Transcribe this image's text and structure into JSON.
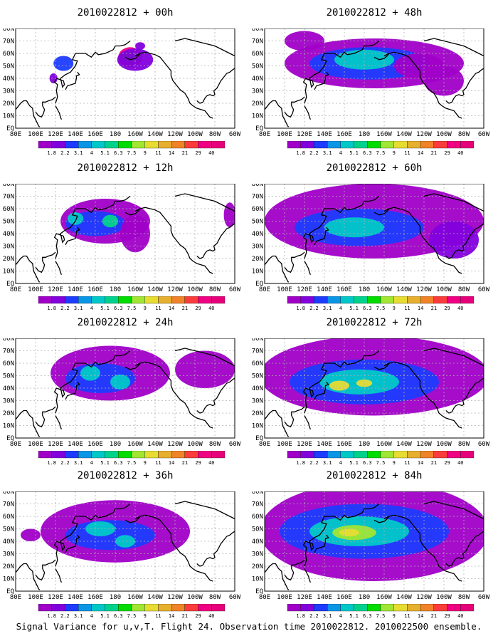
{
  "caption": "Signal Variance for u,v,T. Flight 24. Observation time 2010022812. 2010022500 ensemble.",
  "colors": {
    "ocean": "#ffffff",
    "coast": "#000000",
    "grid": "#b0b0b0",
    "frame": "#000000"
  },
  "chart_data": [
    {
      "type": "heatmap",
      "title": "2010022812 + 00h",
      "xlabel": "",
      "ylabel": "",
      "x_ticks": [
        "80E",
        "100E",
        "120E",
        "140E",
        "160E",
        "180",
        "160W",
        "140W",
        "120W",
        "100W",
        "80W",
        "60W"
      ],
      "y_ticks": [
        "EQ",
        "10N",
        "20N",
        "30N",
        "40N",
        "50N",
        "60N",
        "70N",
        "80N"
      ],
      "xlim_deg_east": [
        80,
        300
      ],
      "ylim_deg_north": [
        0,
        80
      ],
      "grid": true,
      "levels": [
        "1.8",
        "2.2",
        "3.1",
        "4",
        "5.1",
        "6.3",
        "7.5",
        "9",
        "11",
        "14",
        "21",
        "29",
        "40"
      ],
      "level_colors": [
        "#a000c8",
        "#8200dc",
        "#1e3cff",
        "#0a96e6",
        "#00c8c8",
        "#00d28c",
        "#00dc00",
        "#a0e632",
        "#e6dc32",
        "#e6af2d",
        "#f08228",
        "#fa3c3c",
        "#f00082"
      ],
      "blobs": [
        {
          "lon": 195,
          "lat": 57,
          "rx": 12,
          "ry": 8,
          "level": 12
        },
        {
          "lon": 195,
          "lat": 57,
          "rx": 8,
          "ry": 4,
          "level": 6
        },
        {
          "lon": 200,
          "lat": 55,
          "rx": 18,
          "ry": 9,
          "level": 1
        },
        {
          "lon": 128,
          "lat": 52,
          "rx": 10,
          "ry": 6,
          "level": 2
        },
        {
          "lon": 118,
          "lat": 40,
          "rx": 4,
          "ry": 4,
          "level": 1
        },
        {
          "lon": 205,
          "lat": 66,
          "rx": 5,
          "ry": 3,
          "level": 1
        }
      ]
    },
    {
      "type": "heatmap",
      "title": "2010022812 + 48h",
      "xlabel": "",
      "ylabel": "",
      "x_ticks": [
        "80E",
        "100E",
        "120E",
        "140E",
        "160E",
        "180",
        "160W",
        "140W",
        "120W",
        "100W",
        "80W",
        "60W"
      ],
      "y_ticks": [
        "EQ",
        "10N",
        "20N",
        "30N",
        "40N",
        "50N",
        "60N",
        "70N",
        "80N"
      ],
      "xlim_deg_east": [
        80,
        300
      ],
      "ylim_deg_north": [
        0,
        80
      ],
      "grid": true,
      "levels": [
        "1.8",
        "2.2",
        "3.1",
        "4",
        "5.1",
        "6.3",
        "7.5",
        "9",
        "11",
        "14",
        "21",
        "29",
        "40"
      ],
      "level_colors": [
        "#a000c8",
        "#8200dc",
        "#1e3cff",
        "#0a96e6",
        "#00c8c8",
        "#00d28c",
        "#00dc00",
        "#a0e632",
        "#e6dc32",
        "#e6af2d",
        "#f08228",
        "#fa3c3c",
        "#f00082"
      ],
      "blobs": [
        {
          "lon": 190,
          "lat": 52,
          "rx": 90,
          "ry": 20,
          "level": 0
        },
        {
          "lon": 185,
          "lat": 52,
          "rx": 60,
          "ry": 13,
          "level": 2
        },
        {
          "lon": 180,
          "lat": 55,
          "rx": 30,
          "ry": 8,
          "level": 4
        },
        {
          "lon": 235,
          "lat": 50,
          "rx": 25,
          "ry": 10,
          "level": 0
        },
        {
          "lon": 260,
          "lat": 38,
          "rx": 20,
          "ry": 12,
          "level": 0
        },
        {
          "lon": 120,
          "lat": 70,
          "rx": 20,
          "ry": 8,
          "level": 0
        }
      ]
    },
    {
      "type": "heatmap",
      "title": "2010022812 + 12h",
      "xlabel": "",
      "ylabel": "",
      "x_ticks": [
        "80E",
        "100E",
        "120E",
        "140E",
        "160E",
        "180",
        "160W",
        "140W",
        "120W",
        "100W",
        "80W",
        "60W"
      ],
      "y_ticks": [
        "EQ",
        "10N",
        "20N",
        "30N",
        "40N",
        "50N",
        "60N",
        "70N",
        "80N"
      ],
      "xlim_deg_east": [
        80,
        300
      ],
      "ylim_deg_north": [
        0,
        80
      ],
      "grid": true,
      "levels": [
        "1.8",
        "2.2",
        "3.1",
        "4",
        "5.1",
        "6.3",
        "7.5",
        "9",
        "11",
        "14",
        "21",
        "29",
        "40"
      ],
      "level_colors": [
        "#a000c8",
        "#8200dc",
        "#1e3cff",
        "#0a96e6",
        "#00c8c8",
        "#00d28c",
        "#00dc00",
        "#a0e632",
        "#e6dc32",
        "#e6af2d",
        "#f08228",
        "#fa3c3c",
        "#f00082"
      ],
      "blobs": [
        {
          "lon": 170,
          "lat": 50,
          "rx": 45,
          "ry": 18,
          "level": 0
        },
        {
          "lon": 160,
          "lat": 48,
          "rx": 30,
          "ry": 10,
          "level": 2
        },
        {
          "lon": 175,
          "lat": 50,
          "rx": 8,
          "ry": 5,
          "level": 5
        },
        {
          "lon": 140,
          "lat": 52,
          "rx": 8,
          "ry": 5,
          "level": 4
        },
        {
          "lon": 200,
          "lat": 40,
          "rx": 15,
          "ry": 15,
          "level": 0
        },
        {
          "lon": 295,
          "lat": 55,
          "rx": 6,
          "ry": 10,
          "level": 0
        }
      ]
    },
    {
      "type": "heatmap",
      "title": "2010022812 + 60h",
      "xlabel": "",
      "ylabel": "",
      "x_ticks": [
        "80E",
        "100E",
        "120E",
        "140E",
        "160E",
        "180",
        "160W",
        "140W",
        "120W",
        "100W",
        "80W",
        "60W"
      ],
      "y_ticks": [
        "EQ",
        "10N",
        "20N",
        "30N",
        "40N",
        "50N",
        "60N",
        "70N",
        "80N"
      ],
      "xlim_deg_east": [
        80,
        300
      ],
      "ylim_deg_north": [
        0,
        80
      ],
      "grid": true,
      "levels": [
        "1.8",
        "2.2",
        "3.1",
        "4",
        "5.1",
        "6.3",
        "7.5",
        "9",
        "11",
        "14",
        "21",
        "29",
        "40"
      ],
      "level_colors": [
        "#a000c8",
        "#8200dc",
        "#1e3cff",
        "#0a96e6",
        "#00c8c8",
        "#00d28c",
        "#00dc00",
        "#a0e632",
        "#e6dc32",
        "#e6af2d",
        "#f08228",
        "#fa3c3c",
        "#f00082"
      ],
      "blobs": [
        {
          "lon": 190,
          "lat": 50,
          "rx": 110,
          "ry": 30,
          "level": 0
        },
        {
          "lon": 175,
          "lat": 45,
          "rx": 65,
          "ry": 15,
          "level": 2
        },
        {
          "lon": 170,
          "lat": 45,
          "rx": 30,
          "ry": 8,
          "level": 4
        },
        {
          "lon": 270,
          "lat": 35,
          "rx": 25,
          "ry": 15,
          "level": 1
        }
      ]
    },
    {
      "type": "heatmap",
      "title": "2010022812 + 24h",
      "xlabel": "",
      "ylabel": "",
      "x_ticks": [
        "80E",
        "100E",
        "120E",
        "140E",
        "160E",
        "180",
        "160W",
        "140W",
        "120W",
        "100W",
        "80W",
        "60W"
      ],
      "y_ticks": [
        "EQ",
        "10N",
        "20N",
        "30N",
        "40N",
        "50N",
        "60N",
        "70N",
        "80N"
      ],
      "xlim_deg_east": [
        80,
        300
      ],
      "ylim_deg_north": [
        0,
        80
      ],
      "grid": true,
      "levels": [
        "1.8",
        "2.2",
        "3.1",
        "4",
        "5.1",
        "6.3",
        "7.5",
        "9",
        "11",
        "14",
        "21",
        "29",
        "40"
      ],
      "level_colors": [
        "#a000c8",
        "#8200dc",
        "#1e3cff",
        "#0a96e6",
        "#00c8c8",
        "#00d28c",
        "#00dc00",
        "#a0e632",
        "#e6dc32",
        "#e6af2d",
        "#f08228",
        "#fa3c3c",
        "#f00082"
      ],
      "blobs": [
        {
          "lon": 175,
          "lat": 52,
          "rx": 60,
          "ry": 22,
          "level": 0
        },
        {
          "lon": 165,
          "lat": 48,
          "rx": 35,
          "ry": 12,
          "level": 2
        },
        {
          "lon": 155,
          "lat": 52,
          "rx": 10,
          "ry": 6,
          "level": 4
        },
        {
          "lon": 185,
          "lat": 45,
          "rx": 10,
          "ry": 6,
          "level": 4
        },
        {
          "lon": 270,
          "lat": 55,
          "rx": 30,
          "ry": 15,
          "level": 0
        }
      ]
    },
    {
      "type": "heatmap",
      "title": "2010022812 + 72h",
      "xlabel": "",
      "ylabel": "",
      "x_ticks": [
        "80E",
        "100E",
        "120E",
        "140E",
        "160E",
        "180",
        "160W",
        "140W",
        "120W",
        "100W",
        "80W",
        "60W"
      ],
      "y_ticks": [
        "EQ",
        "10N",
        "20N",
        "30N",
        "40N",
        "50N",
        "60N",
        "70N",
        "80N"
      ],
      "xlim_deg_east": [
        80,
        300
      ],
      "ylim_deg_north": [
        0,
        80
      ],
      "grid": true,
      "levels": [
        "1.8",
        "2.2",
        "3.1",
        "4",
        "5.1",
        "6.3",
        "7.5",
        "9",
        "11",
        "14",
        "21",
        "29",
        "40"
      ],
      "level_colors": [
        "#a000c8",
        "#8200dc",
        "#1e3cff",
        "#0a96e6",
        "#00c8c8",
        "#00d28c",
        "#00dc00",
        "#a0e632",
        "#e6dc32",
        "#e6af2d",
        "#f08228",
        "#fa3c3c",
        "#f00082"
      ],
      "blobs": [
        {
          "lon": 190,
          "lat": 50,
          "rx": 115,
          "ry": 32,
          "level": 0
        },
        {
          "lon": 180,
          "lat": 45,
          "rx": 75,
          "ry": 18,
          "level": 2
        },
        {
          "lon": 175,
          "lat": 45,
          "rx": 40,
          "ry": 10,
          "level": 4
        },
        {
          "lon": 155,
          "lat": 42,
          "rx": 10,
          "ry": 4,
          "level": 8
        },
        {
          "lon": 180,
          "lat": 44,
          "rx": 8,
          "ry": 3,
          "level": 8
        }
      ]
    },
    {
      "type": "heatmap",
      "title": "2010022812 + 36h",
      "xlabel": "",
      "ylabel": "",
      "x_ticks": [
        "80E",
        "100E",
        "120E",
        "140E",
        "160E",
        "180",
        "160W",
        "140W",
        "120W",
        "100W",
        "80W",
        "60W"
      ],
      "y_ticks": [
        "EQ",
        "10N",
        "20N",
        "30N",
        "40N",
        "50N",
        "60N",
        "70N",
        "80N"
      ],
      "xlim_deg_east": [
        80,
        300
      ],
      "ylim_deg_north": [
        0,
        80
      ],
      "grid": true,
      "levels": [
        "1.8",
        "2.2",
        "3.1",
        "4",
        "5.1",
        "6.3",
        "7.5",
        "9",
        "11",
        "14",
        "21",
        "29",
        "40"
      ],
      "level_colors": [
        "#a000c8",
        "#8200dc",
        "#1e3cff",
        "#0a96e6",
        "#00c8c8",
        "#00d28c",
        "#00dc00",
        "#a0e632",
        "#e6dc32",
        "#e6af2d",
        "#f08228",
        "#fa3c3c",
        "#f00082"
      ],
      "blobs": [
        {
          "lon": 180,
          "lat": 48,
          "rx": 75,
          "ry": 25,
          "level": 0
        },
        {
          "lon": 175,
          "lat": 45,
          "rx": 45,
          "ry": 12,
          "level": 2
        },
        {
          "lon": 165,
          "lat": 50,
          "rx": 15,
          "ry": 6,
          "level": 4
        },
        {
          "lon": 190,
          "lat": 40,
          "rx": 10,
          "ry": 5,
          "level": 4
        },
        {
          "lon": 95,
          "lat": 45,
          "rx": 10,
          "ry": 5,
          "level": 0
        }
      ]
    },
    {
      "type": "heatmap",
      "title": "2010022812 + 84h",
      "xlabel": "",
      "ylabel": "",
      "x_ticks": [
        "80E",
        "100E",
        "120E",
        "140E",
        "160E",
        "180",
        "160W",
        "140W",
        "120W",
        "100W",
        "80W",
        "60W"
      ],
      "y_ticks": [
        "EQ",
        "10N",
        "20N",
        "30N",
        "40N",
        "50N",
        "60N",
        "70N",
        "80N"
      ],
      "xlim_deg_east": [
        80,
        300
      ],
      "ylim_deg_north": [
        0,
        80
      ],
      "grid": true,
      "levels": [
        "1.8",
        "2.2",
        "3.1",
        "4",
        "5.1",
        "6.3",
        "7.5",
        "9",
        "11",
        "14",
        "21",
        "29",
        "40"
      ],
      "level_colors": [
        "#a000c8",
        "#8200dc",
        "#1e3cff",
        "#0a96e6",
        "#00c8c8",
        "#00d28c",
        "#00dc00",
        "#a0e632",
        "#e6dc32",
        "#e6af2d",
        "#f08228",
        "#fa3c3c",
        "#f00082"
      ],
      "blobs": [
        {
          "lon": 190,
          "lat": 48,
          "rx": 115,
          "ry": 40,
          "level": 0
        },
        {
          "lon": 180,
          "lat": 48,
          "rx": 85,
          "ry": 22,
          "level": 2
        },
        {
          "lon": 175,
          "lat": 48,
          "rx": 50,
          "ry": 12,
          "level": 4
        },
        {
          "lon": 170,
          "lat": 47,
          "rx": 22,
          "ry": 6,
          "level": 7
        },
        {
          "lon": 165,
          "lat": 47,
          "rx": 10,
          "ry": 3,
          "level": 8
        }
      ]
    }
  ]
}
